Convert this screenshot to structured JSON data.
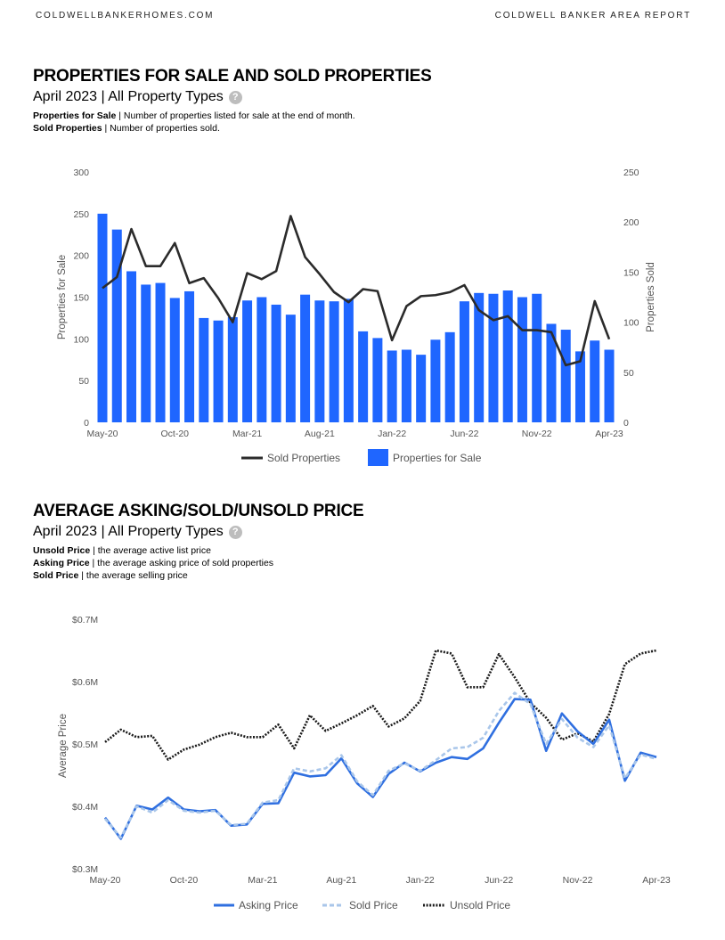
{
  "header": {
    "left": "COLDWELLBANKERHOMES.COM",
    "right": "COLDWELL BANKER AREA REPORT"
  },
  "section1": {
    "title": "PROPERTIES FOR SALE AND SOLD PROPERTIES",
    "subtitle": "April 2023 | All Property Types",
    "help": "?",
    "desc1_bold": "Properties for Sale",
    "desc1_text": " | Number of properties listed for sale at the end of month.",
    "desc2_bold": "Sold Properties",
    "desc2_text": " | Number of properties sold."
  },
  "section2": {
    "title": "AVERAGE ASKING/SOLD/UNSOLD PRICE",
    "subtitle": "April 2023 | All Property Types",
    "help": "?",
    "desc1_bold": "Unsold Price",
    "desc1_text": " | the average active list price",
    "desc2_bold": "Asking Price",
    "desc2_text": " | the average asking price of sold properties",
    "desc3_bold": "Sold Price",
    "desc3_text": " | the average selling price"
  },
  "chart_data": [
    {
      "type": "bar",
      "title": "Properties for Sale and Sold Properties",
      "xlabel": "",
      "ylabel": "Properties for Sale",
      "y2label": "Properties Sold",
      "ylim": [
        0,
        300
      ],
      "y2lim": [
        0,
        250
      ],
      "yticks": [
        "0",
        "50",
        "100",
        "150",
        "200",
        "250",
        "300"
      ],
      "y2ticks": [
        "0",
        "50",
        "100",
        "150",
        "200",
        "250"
      ],
      "xticks": [
        {
          "i": 0,
          "label": "May-20"
        },
        {
          "i": 5,
          "label": "Oct-20"
        },
        {
          "i": 10,
          "label": "Mar-21"
        },
        {
          "i": 15,
          "label": "Aug-21"
        },
        {
          "i": 20,
          "label": "Jan-22"
        },
        {
          "i": 25,
          "label": "Jun-22"
        },
        {
          "i": 30,
          "label": "Nov-22"
        },
        {
          "i": 35,
          "label": "Apr-23"
        }
      ],
      "categories": [
        "May-20",
        "Jun-20",
        "Jul-20",
        "Aug-20",
        "Sep-20",
        "Oct-20",
        "Nov-20",
        "Dec-20",
        "Jan-21",
        "Feb-21",
        "Mar-21",
        "Apr-21",
        "May-21",
        "Jun-21",
        "Jul-21",
        "Aug-21",
        "Sep-21",
        "Oct-21",
        "Nov-21",
        "Dec-21",
        "Jan-22",
        "Feb-22",
        "Mar-22",
        "Apr-22",
        "May-22",
        "Jun-22",
        "Jul-22",
        "Aug-22",
        "Sep-22",
        "Oct-22",
        "Nov-22",
        "Dec-22",
        "Jan-23",
        "Feb-23",
        "Mar-23",
        "Apr-23"
      ],
      "series": [
        {
          "name": "Properties for Sale",
          "axis": "left",
          "color": "#1f66ff",
          "values": [
            250,
            231,
            181,
            165,
            167,
            149,
            157,
            125,
            122,
            126,
            146,
            150,
            141,
            129,
            153,
            146,
            145,
            148,
            109,
            101,
            86,
            87,
            81,
            99,
            108,
            145,
            155,
            154,
            158,
            150,
            154,
            118,
            111,
            85,
            98,
            87
          ]
        },
        {
          "name": "Sold Properties",
          "axis": "right",
          "color": "#2b2b2b",
          "values": [
            134,
            145,
            193,
            156,
            156,
            179,
            139,
            144,
            124,
            100,
            149,
            143,
            151,
            206,
            165,
            148,
            130,
            120,
            133,
            131,
            82,
            116,
            126,
            127,
            130,
            137,
            112,
            102,
            106,
            92,
            92,
            90,
            57,
            61,
            121,
            83
          ]
        }
      ],
      "legend": [
        "Sold Properties",
        "Properties for Sale"
      ]
    },
    {
      "type": "line",
      "title": "Average Asking/Sold/Unsold Price",
      "xlabel": "",
      "ylabel": "Average Price",
      "ylim": [
        0.3,
        0.7
      ],
      "yticks": [
        "$0.3M",
        "$0.4M",
        "$0.5M",
        "$0.6M",
        "$0.7M"
      ],
      "xticks": [
        {
          "i": 0,
          "label": "May-20"
        },
        {
          "i": 5,
          "label": "Oct-20"
        },
        {
          "i": 10,
          "label": "Mar-21"
        },
        {
          "i": 15,
          "label": "Aug-21"
        },
        {
          "i": 20,
          "label": "Jan-22"
        },
        {
          "i": 25,
          "label": "Jun-22"
        },
        {
          "i": 30,
          "label": "Nov-22"
        },
        {
          "i": 35,
          "label": "Apr-23"
        }
      ],
      "series": [
        {
          "name": "Asking Price",
          "color": "#2f6fe0",
          "style": "solid",
          "values": [
            0.382,
            0.348,
            0.401,
            0.395,
            0.414,
            0.395,
            0.392,
            0.394,
            0.369,
            0.371,
            0.404,
            0.405,
            0.454,
            0.448,
            0.45,
            0.477,
            0.437,
            0.415,
            0.452,
            0.47,
            0.456,
            0.47,
            0.479,
            0.476,
            0.493,
            0.534,
            0.572,
            0.571,
            0.489,
            0.549,
            0.52,
            0.5,
            0.539,
            0.441,
            0.486,
            0.479
          ]
        },
        {
          "name": "Sold Price",
          "color": "#a9c6ea",
          "style": "dashed",
          "values": [
            0.38,
            0.35,
            0.4,
            0.39,
            0.41,
            0.393,
            0.39,
            0.393,
            0.37,
            0.372,
            0.406,
            0.41,
            0.461,
            0.456,
            0.461,
            0.482,
            0.44,
            0.418,
            0.457,
            0.469,
            0.457,
            0.474,
            0.493,
            0.495,
            0.51,
            0.553,
            0.582,
            0.564,
            0.5,
            0.54,
            0.51,
            0.495,
            0.53,
            0.445,
            0.483,
            0.476
          ]
        },
        {
          "name": "Unsold Price",
          "color": "#1a1a1a",
          "style": "dotted",
          "values": [
            0.503,
            0.523,
            0.511,
            0.513,
            0.475,
            0.491,
            0.499,
            0.511,
            0.518,
            0.511,
            0.511,
            0.531,
            0.493,
            0.546,
            0.521,
            0.533,
            0.546,
            0.561,
            0.528,
            0.541,
            0.569,
            0.65,
            0.645,
            0.591,
            0.591,
            0.644,
            0.607,
            0.566,
            0.542,
            0.507,
            0.517,
            0.504,
            0.548,
            0.628,
            0.645,
            0.65
          ]
        }
      ],
      "legend": [
        "Asking Price",
        "Sold Price",
        "Unsold Price"
      ]
    }
  ]
}
